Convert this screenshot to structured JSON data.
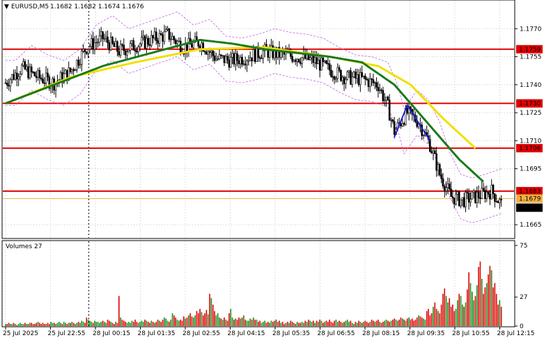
{
  "header": {
    "symbol": "EURUSD,M5",
    "ohlc": "1.1682 1.1682 1.1674 1.1676",
    "collapse_glyph": "▼"
  },
  "volume_header": {
    "label": "Volumes 27"
  },
  "colors": {
    "grid": "#c8c8c8",
    "level_line": "#e00000",
    "level_label_bg": "#e00000",
    "level_label_text": "#ffffff",
    "current_price_bg": "#000000",
    "current_price_text": "#ffffff",
    "ma_fast": "#f0e000",
    "ma_slow": "#1a7a1a",
    "envelope": "#c060e0",
    "candle": "#000000",
    "volume_up": "#1a8a1a",
    "volume_down": "#e00000",
    "trend_annotation": "#2020d0",
    "bid_line": "#f0b040"
  },
  "chart_data": [
    {
      "type": "candlestick",
      "title": "EURUSD,M5",
      "ylim": [
        1.1658,
        1.1785
      ],
      "y_ticks": [
        "1.1770",
        "1.1755",
        "1.1740",
        "1.1725",
        "1.1710",
        "1.1695",
        "1.1665"
      ],
      "y_tick_values": [
        1.177,
        1.1755,
        1.174,
        1.1725,
        1.171,
        1.1695,
        1.1665
      ],
      "x_ticks": [
        "25 Jul 2025",
        "25 Jul 22:55",
        "28 Jul 00:15",
        "28 Jul 01:35",
        "28 Jul 02:55",
        "28 Jul 04:15",
        "28 Jul 05:35",
        "28 Jul 06:55",
        "28 Jul 08:15",
        "28 Jul 09:35",
        "28 Jul 10:55",
        "28 Jul 12:15"
      ],
      "horizontal_levels": [
        {
          "value": 1.1759,
          "label": "1.1759"
        },
        {
          "value": 1.173,
          "label": "1.1730"
        },
        {
          "value": 1.1706,
          "label": "1.1706"
        },
        {
          "value": 1.1683,
          "label": "1.1683"
        }
      ],
      "bid_level": {
        "value": 1.1679,
        "label": "1.1679"
      },
      "current_price": {
        "value": 1.1676,
        "label": "1.1676"
      },
      "session_divider_x_tick": "25 Jul 22:55",
      "close_anchors": [
        [
          0,
          1.1741
        ],
        [
          10,
          1.1749
        ],
        [
          20,
          1.1744
        ],
        [
          30,
          1.1741
        ],
        [
          40,
          1.1747
        ],
        [
          50,
          1.176
        ],
        [
          60,
          1.1765
        ],
        [
          70,
          1.1758
        ],
        [
          80,
          1.1761
        ],
        [
          90,
          1.1764
        ],
        [
          100,
          1.1767
        ],
        [
          110,
          1.176
        ],
        [
          120,
          1.1763
        ],
        [
          130,
          1.1754
        ],
        [
          140,
          1.1753
        ],
        [
          150,
          1.1755
        ],
        [
          160,
          1.1758
        ],
        [
          170,
          1.1756
        ],
        [
          180,
          1.1755
        ],
        [
          190,
          1.1753
        ],
        [
          200,
          1.1748
        ],
        [
          210,
          1.1744
        ],
        [
          220,
          1.1743
        ],
        [
          230,
          1.174
        ],
        [
          236,
          1.1728
        ],
        [
          240,
          1.1715
        ],
        [
          248,
          1.1725
        ],
        [
          255,
          1.172
        ],
        [
          262,
          1.1708
        ],
        [
          268,
          1.1692
        ],
        [
          275,
          1.168
        ],
        [
          282,
          1.1678
        ],
        [
          290,
          1.168
        ],
        [
          300,
          1.1683
        ],
        [
          306,
          1.1676
        ]
      ],
      "ma_fast_anchors": [
        [
          0,
          1.173
        ],
        [
          40,
          1.1744
        ],
        [
          80,
          1.1752
        ],
        [
          120,
          1.1759
        ],
        [
          160,
          1.176
        ],
        [
          200,
          1.1755
        ],
        [
          230,
          1.175
        ],
        [
          250,
          1.174
        ],
        [
          270,
          1.1722
        ],
        [
          290,
          1.1706
        ]
      ],
      "ma_slow_anchors": [
        [
          0,
          1.173
        ],
        [
          30,
          1.174
        ],
        [
          60,
          1.175
        ],
        [
          90,
          1.1757
        ],
        [
          120,
          1.1764
        ],
        [
          140,
          1.1762
        ],
        [
          160,
          1.1759
        ],
        [
          200,
          1.1755
        ],
        [
          220,
          1.1752
        ],
        [
          240,
          1.174
        ],
        [
          260,
          1.172
        ],
        [
          280,
          1.17
        ],
        [
          295,
          1.1688
        ]
      ],
      "trend_annotation": [
        [
          240,
          1.1712
        ],
        [
          248,
          1.1729
        ],
        [
          262,
          1.171
        ]
      ],
      "volume": {
        "ylim": [
          0,
          75
        ],
        "y_ticks": [
          "75",
          "27",
          "0"
        ],
        "y_tick_values": [
          75,
          27,
          0
        ],
        "values": [
          2,
          2,
          3,
          2,
          2,
          3,
          2,
          1,
          2,
          3,
          2,
          2,
          3,
          2,
          2,
          3,
          3,
          2,
          2,
          3,
          4,
          3,
          2,
          3,
          2,
          2,
          3,
          2,
          4,
          3,
          3,
          2,
          3,
          4,
          3,
          2,
          4,
          3,
          2,
          3,
          3,
          4,
          3,
          2,
          3,
          4,
          3,
          5,
          4,
          3,
          8,
          6,
          5,
          4,
          3,
          5,
          4,
          4,
          3,
          4,
          5,
          4,
          3,
          6,
          5,
          4,
          3,
          2,
          4,
          3,
          28,
          8,
          6,
          5,
          4,
          3,
          4,
          3,
          5,
          4,
          6,
          4,
          3,
          4,
          5,
          4,
          6,
          5,
          4,
          3,
          5,
          4,
          3,
          4,
          6,
          5,
          4,
          6,
          8,
          7,
          5,
          4,
          6,
          12,
          10,
          8,
          6,
          5,
          6,
          5,
          9,
          7,
          8,
          10,
          12,
          9,
          8,
          10,
          14,
          12,
          16,
          13,
          10,
          12,
          15,
          11,
          30,
          26,
          20,
          14,
          10,
          12,
          8,
          7,
          6,
          8,
          6,
          5,
          12,
          16,
          8,
          6,
          7,
          6,
          8,
          7,
          8,
          10,
          6,
          5,
          5,
          7,
          6,
          8,
          6,
          6,
          4,
          5,
          3,
          4,
          5,
          3,
          4,
          3,
          5,
          4,
          5,
          6,
          4,
          5,
          3,
          4,
          2,
          3,
          4,
          3,
          5,
          4,
          3,
          2,
          4,
          3,
          3,
          4,
          3,
          5,
          4,
          6,
          5,
          4,
          5,
          3,
          5,
          4,
          6,
          5,
          3,
          4,
          5,
          4,
          6,
          4,
          3,
          5,
          6,
          4,
          5,
          4,
          3,
          4,
          5,
          6,
          4,
          5,
          3,
          2,
          4,
          3,
          5,
          4,
          3,
          4,
          5,
          4,
          3,
          4,
          6,
          5,
          4,
          5,
          6,
          4,
          3,
          4,
          5,
          6,
          5,
          4,
          5,
          6,
          7,
          6,
          5,
          6,
          8,
          7,
          6,
          5,
          7,
          8,
          6,
          7,
          5,
          6,
          8,
          10,
          9,
          8,
          7,
          6,
          14,
          16,
          10,
          12,
          18,
          22,
          16,
          14,
          12,
          20,
          30,
          35,
          28,
          22,
          26,
          18,
          20,
          14,
          16,
          24,
          30,
          28,
          20,
          18,
          22,
          34,
          50,
          40,
          32,
          24,
          28,
          38,
          55,
          60,
          44,
          30,
          36,
          40,
          48,
          56,
          52,
          36,
          40,
          30,
          20,
          24,
          18,
          16,
          14,
          10,
          12,
          16,
          14,
          22,
          18,
          14,
          12,
          20,
          27
        ]
      }
    }
  ]
}
